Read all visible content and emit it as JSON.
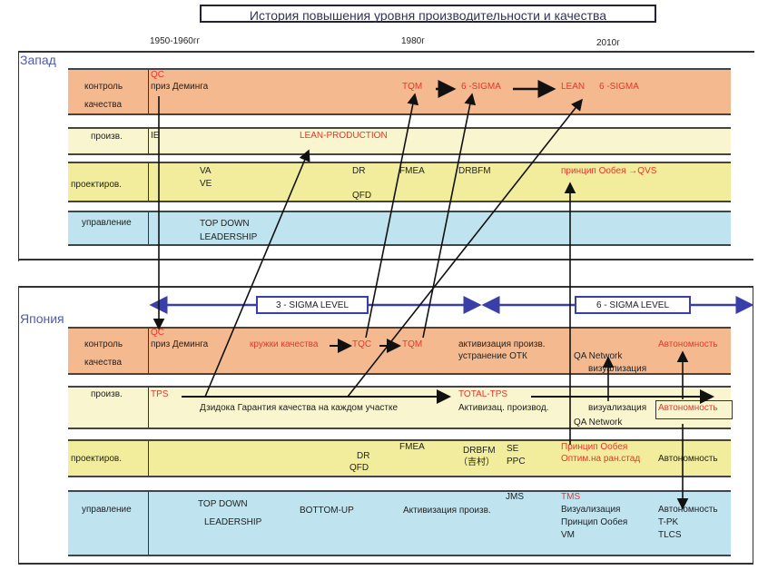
{
  "title": "История повышения уровня производительности и качества",
  "years": [
    "1950-1960гг",
    "1980г",
    "2010г"
  ],
  "west": {
    "label": "Запад",
    "rows": {
      "quality": [
        "контроль",
        "качества"
      ],
      "production": "произв.",
      "design": "проектиров.",
      "management": "управление"
    },
    "quality": {
      "qc": "QC",
      "deming": "приз Деминга",
      "tqm": "TQM",
      "six_sigma": "6 -SIGMA",
      "lean": "LEAN",
      "lean_six_sigma": "6 -SIGMA"
    },
    "production": {
      "ie": "IE",
      "lean_production": "LEAN-PRODUCTION"
    },
    "design": {
      "va": "VA",
      "ve": "VE",
      "dr": "DR",
      "fmea": "FMEA",
      "drbfm": "DRBFM",
      "qfd": "QFD",
      "obeya_qvs": "принцип Oобея →QVS"
    },
    "management": {
      "top_down": "TOP   DOWN",
      "leadership": "LEADERSHIP"
    }
  },
  "sigma": {
    "three": "3  - SIGMA   LEVEL",
    "six": "6  - SIGMA   LEVEL"
  },
  "japan": {
    "label": "Япония",
    "rows": {
      "quality": [
        "контроль",
        "качества"
      ],
      "production": "произв.",
      "design": "проектиров.",
      "management": "управление"
    },
    "quality": {
      "qc": "QC",
      "deming": "приз Деминга",
      "circles": "кружки качества",
      "tqc": "TQC",
      "tqm": "TQM",
      "activation": "активизация произв.",
      "otk": "устранение ОТК",
      "qa_network": "QA Network",
      "visualization": "визуализация",
      "autonomy": "Автономность"
    },
    "production": {
      "tps": "TPS",
      "jidoka": "Дзидока  Гарантия качества на каждом участке",
      "total_tps": "TOTAL-TPS",
      "activation": "Активизац. производ.",
      "visualization": "визуализация",
      "autonomy": "Автономность",
      "qa_network": "QA Network"
    },
    "design": {
      "fmea": "FMEA",
      "drbfm": "DRBFM",
      "yoshimura": "（吉村）",
      "se": "SE",
      "ppc": "PPC",
      "dr": "DR",
      "qfd": "QFD",
      "obeya": "Принцип Oобея",
      "early_opt": "Оптим.на ран.стад",
      "autonomy": "Автономность"
    },
    "management": {
      "top_down": "TOP   DOWN",
      "leadership": "LEADERSHIP",
      "bottom_up": "BOTTOM-UP",
      "activation": "Активизация произв.",
      "jms": "JMS",
      "tms": "TMS",
      "visualization": "Визуализация",
      "obeya": "Принцип Oобея",
      "vm": "VM",
      "autonomy": "Автономность",
      "tpk": "T-PK",
      "tlcs": "TLCS"
    }
  },
  "colors": {
    "quality": "#f5b990",
    "production": "#f9f5cf",
    "design": "#f1ed9c",
    "management": "#bfe3ef",
    "highlight": "#e8352a",
    "sigma": "#3a3ea8"
  }
}
